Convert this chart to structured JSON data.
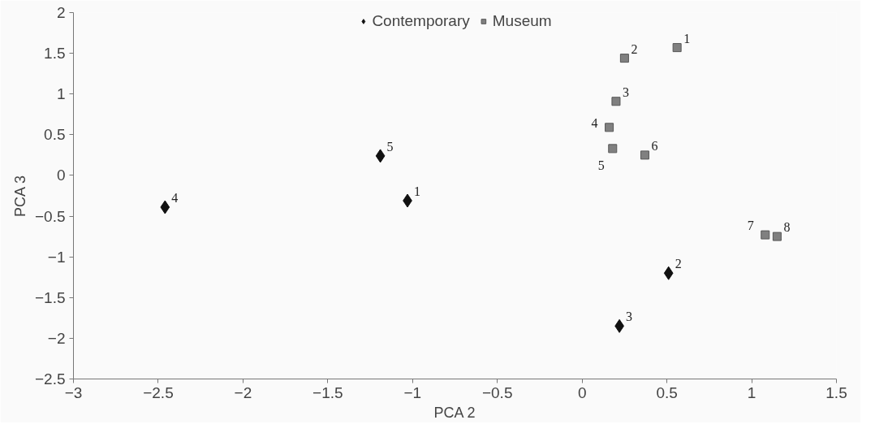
{
  "chart_data": {
    "type": "scatter",
    "xlabel": "PCA 2",
    "ylabel": "PCA 3",
    "xlim": [
      -3,
      1.5
    ],
    "xticks": [
      -3,
      -2.5,
      -2,
      -1.5,
      -1,
      -0.5,
      0,
      0.5,
      1,
      1.5
    ],
    "ylim": [
      -2.5,
      2
    ],
    "yticks": [
      -2.5,
      -2,
      -1.5,
      -1,
      -0.5,
      0,
      0.5,
      1,
      1.5,
      2
    ],
    "grid": false,
    "legend": "top",
    "series": [
      {
        "name": "Contemporary",
        "color": "#111111",
        "marker": "diamond",
        "x": [
          -1.03,
          0.51,
          0.22,
          -2.46,
          -1.19
        ],
        "values": [
          -0.31,
          -1.2,
          -1.85,
          -0.39,
          0.24
        ]
      },
      {
        "name": "Museum",
        "color": "#808080",
        "marker": "square",
        "x": [
          0.56,
          0.25,
          0.2,
          0.16,
          0.18,
          0.37,
          1.08,
          1.15
        ],
        "values": [
          1.57,
          1.44,
          0.91,
          0.59,
          0.33,
          0.25,
          -0.73,
          -0.75
        ]
      }
    ],
    "annotations": [
      {
        "text": "1",
        "x": -1.03,
        "y": -0.31
      },
      {
        "text": "2",
        "x": 0.51,
        "y": -1.2
      },
      {
        "text": "3",
        "x": 0.22,
        "y": -1.85
      },
      {
        "text": "4",
        "x": -2.46,
        "y": -0.39
      },
      {
        "text": "5",
        "x": -1.19,
        "y": 0.24
      },
      {
        "text": "1",
        "x": 0.56,
        "y": 1.57
      },
      {
        "text": "2",
        "x": 0.25,
        "y": 1.44
      },
      {
        "text": "3",
        "x": 0.2,
        "y": 0.91
      },
      {
        "text": "4",
        "x": 0.16,
        "y": 0.59
      },
      {
        "text": "5",
        "x": 0.18,
        "y": 0.33
      },
      {
        "text": "6",
        "x": 0.37,
        "y": 0.25
      },
      {
        "text": "7",
        "x": 1.08,
        "y": -0.73
      },
      {
        "text": "8",
        "x": 1.15,
        "y": -0.75
      }
    ]
  }
}
